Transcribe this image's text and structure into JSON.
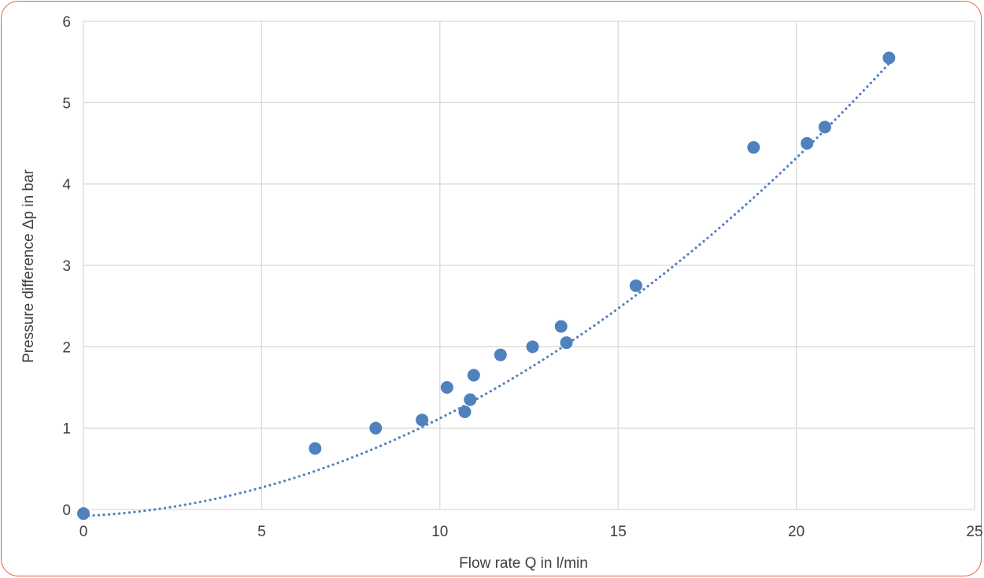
{
  "chart_data": {
    "type": "scatter",
    "title": "",
    "xlabel": "Flow rate Q in l/min",
    "ylabel": "Pressure difference Δp in bar",
    "xlim": [
      0,
      25
    ],
    "ylim": [
      0,
      6
    ],
    "x_ticks": [
      "0",
      "5",
      "10",
      "15",
      "20",
      "25"
    ],
    "y_ticks": [
      "0",
      "1",
      "2",
      "3",
      "4",
      "5",
      "6"
    ],
    "grid": true,
    "legend": "none",
    "series": [
      {
        "color": "#4f81bd",
        "points": [
          {
            "x": 0.0,
            "y": -0.05
          },
          {
            "x": 6.5,
            "y": 0.75
          },
          {
            "x": 8.2,
            "y": 1.0
          },
          {
            "x": 9.5,
            "y": 1.1
          },
          {
            "x": 10.2,
            "y": 1.5
          },
          {
            "x": 10.7,
            "y": 1.2
          },
          {
            "x": 10.85,
            "y": 1.35
          },
          {
            "x": 10.95,
            "y": 1.65
          },
          {
            "x": 11.7,
            "y": 1.9
          },
          {
            "x": 12.6,
            "y": 2.0
          },
          {
            "x": 13.4,
            "y": 2.25
          },
          {
            "x": 13.55,
            "y": 2.05
          },
          {
            "x": 15.5,
            "y": 2.75
          },
          {
            "x": 18.8,
            "y": 4.45
          },
          {
            "x": 20.3,
            "y": 4.5
          },
          {
            "x": 20.8,
            "y": 4.7
          },
          {
            "x": 22.6,
            "y": 5.55
          }
        ]
      }
    ],
    "trendline": {
      "type": "polynomial",
      "style": "dotted",
      "color": "#4f81bd",
      "coefficients": [
        -0.08,
        0.02,
        0.01
      ]
    },
    "colors": {
      "frame_border": "#e0643a",
      "grid": "#d9d9d9",
      "marker": "#4f81bd",
      "text": "#404040"
    }
  }
}
